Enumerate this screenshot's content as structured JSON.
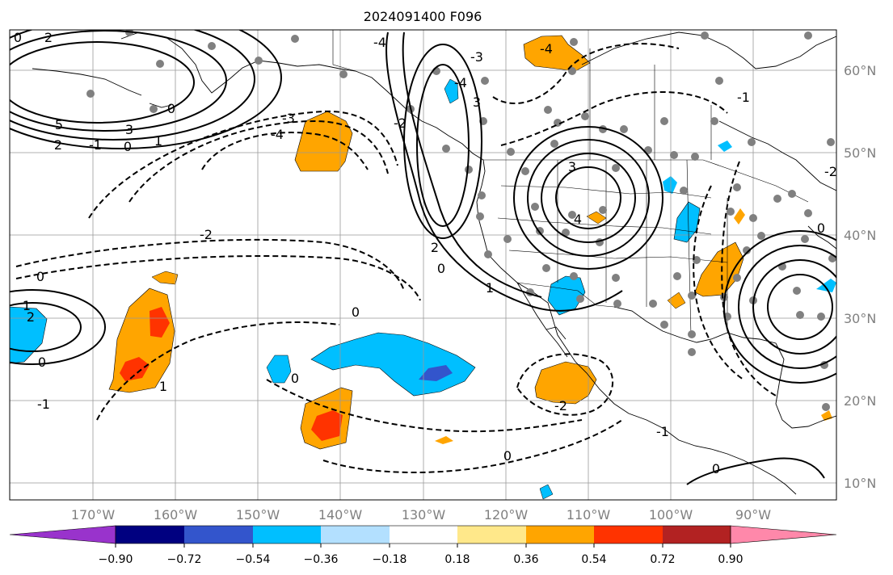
{
  "title": "2024091400 F096",
  "lon_labels": [
    "170°W",
    "160°W",
    "150°W",
    "140°W",
    "130°W",
    "120°W",
    "110°W",
    "100°W",
    "90°W"
  ],
  "lat_labels": [
    "60°N",
    "50°N",
    "40°N",
    "30°N",
    "20°N",
    "10°N"
  ],
  "colorbar": {
    "tick_labels": [
      "−0.90",
      "−0.72",
      "−0.54",
      "−0.36",
      "−0.18",
      "0.18",
      "0.36",
      "0.54",
      "0.72",
      "0.90"
    ],
    "colors": [
      "#9933cc",
      "#000080",
      "#3355cc",
      "#00bfff",
      "#b3e0ff",
      "#ffffff",
      "#ffe88a",
      "#ffa500",
      "#ff3300",
      "#b22222",
      "#ff88aa"
    ]
  },
  "contour_labels": [
    "0",
    "2",
    "5",
    "3",
    "-1",
    "0",
    "1",
    "2",
    "-4",
    "-3",
    "-2",
    "-1",
    "0",
    "1",
    "2",
    "-4",
    "-2",
    "3",
    "4",
    "0",
    "1",
    "2",
    "3",
    "0",
    "-4",
    "1",
    "-2",
    "-3",
    "-4",
    "0",
    "-1",
    "0",
    "-2",
    "0",
    "-1",
    "0",
    "0",
    "0"
  ],
  "shading_colors": {
    "negative": "#00bfff",
    "negative_strong": "#3355cc",
    "positive": "#ffa500",
    "positive_strong": "#ff3300"
  }
}
